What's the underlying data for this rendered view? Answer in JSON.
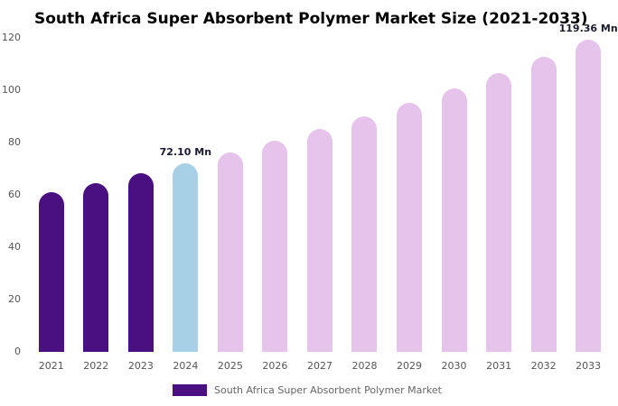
{
  "chart_data": {
    "type": "bar",
    "title": "South Africa Super Absorbent Polymer Market Size (2021-2033)",
    "categories": [
      "2021",
      "2022",
      "2023",
      "2024",
      "2025",
      "2026",
      "2027",
      "2028",
      "2029",
      "2030",
      "2031",
      "2032",
      "2033"
    ],
    "values": [
      60.97,
      64.47,
      68.18,
      72.1,
      76.25,
      80.63,
      85.27,
      90.17,
      95.36,
      100.84,
      106.64,
      112.77,
      119.36
    ],
    "xlabel": "",
    "ylabel": "",
    "ylim": [
      0,
      120
    ],
    "yticks": [
      0,
      20,
      40,
      60,
      80,
      100,
      120
    ],
    "grid": false,
    "colors": {
      "historical": "#4a1082",
      "highlight": "#a7d0e6",
      "forecast": "#e6c3ea"
    },
    "segment_map": [
      "historical",
      "historical",
      "historical",
      "highlight",
      "forecast",
      "forecast",
      "forecast",
      "forecast",
      "forecast",
      "forecast",
      "forecast",
      "forecast",
      "forecast"
    ],
    "annotations": [
      {
        "category": "2024",
        "text": "72.10 Mn"
      },
      {
        "category": "2033",
        "text": "119.36 Mn"
      }
    ],
    "legend_position": "bottom"
  },
  "legend": {
    "label": "South Africa Super Absorbent Polymer Market",
    "swatch_color": "#4a1082"
  }
}
